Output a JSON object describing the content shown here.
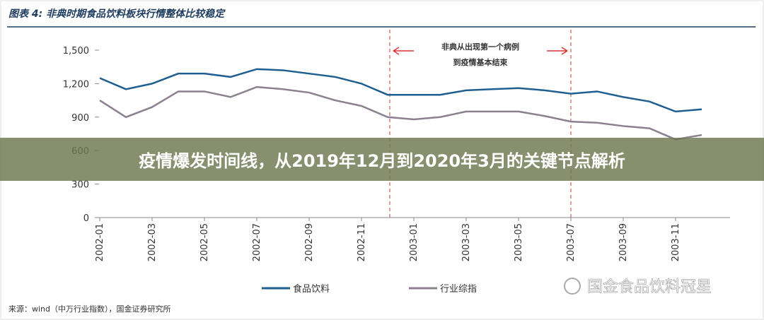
{
  "chart_data": {
    "type": "line",
    "title": "图表 4: 非典时期食品饮料板块行情整体比较稳定",
    "annotation": [
      "非典从出现第一个病例",
      "到疫情基本结束"
    ],
    "categories": [
      "2002-01",
      null,
      "2002-03",
      null,
      "2002-05",
      null,
      "2002-07",
      null,
      "2002-09",
      null,
      "2002-11",
      null,
      "2003-01",
      null,
      "2003-03",
      null,
      "2003-05",
      null,
      "2003-07",
      null,
      "2003-09",
      null,
      "2003-11",
      null
    ],
    "series": [
      {
        "name": "食品饮料",
        "color": "#1f5f8f",
        "values": [
          1250,
          1150,
          1200,
          1290,
          1290,
          1260,
          1330,
          1320,
          1290,
          1260,
          1200,
          1100,
          1100,
          1100,
          1140,
          1150,
          1160,
          1140,
          1110,
          1130,
          1080,
          1040,
          950,
          970
        ]
      },
      {
        "name": "行业综指",
        "color": "#8c7f8f",
        "values": [
          1050,
          900,
          990,
          1130,
          1130,
          1080,
          1170,
          1150,
          1120,
          1050,
          1000,
          900,
          880,
          900,
          950,
          950,
          950,
          910,
          860,
          850,
          820,
          800,
          700,
          740
        ]
      }
    ],
    "ylim": [
      0,
      1500
    ],
    "yticks": [
      0,
      300,
      600,
      900,
      {
        "value": 1200,
        "label": "1,200"
      },
      {
        "value": 1500,
        "label": "1,500"
      }
    ],
    "source": "来源：wind（中万行业指数），国金证券研究所"
  },
  "banner": "疫情爆发时间线，从2019年12月到2020年3月的关键节点解析",
  "watermark": "国金食品饮料冠星"
}
